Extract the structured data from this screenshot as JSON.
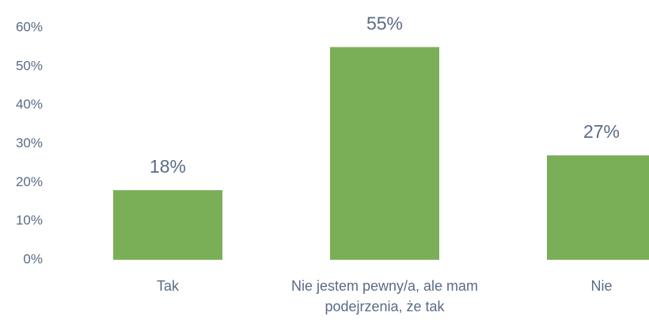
{
  "chart_data": {
    "type": "bar",
    "categories": [
      "Tak",
      "Nie jestem pewny/a, ale mam podejrzenia, że tak",
      "Nie"
    ],
    "values": [
      18,
      55,
      27
    ],
    "value_labels": [
      "18%",
      "55%",
      "27%"
    ],
    "color": "#7aaf57",
    "ylim": [
      0,
      60
    ],
    "yticks": [
      {
        "value": 0,
        "label": "0%"
      },
      {
        "value": 10,
        "label": "10%"
      },
      {
        "value": 20,
        "label": "20%"
      },
      {
        "value": 30,
        "label": "30%"
      },
      {
        "value": 40,
        "label": "40%"
      },
      {
        "value": 50,
        "label": "50%"
      },
      {
        "value": 60,
        "label": "60%"
      }
    ],
    "grid": false
  }
}
